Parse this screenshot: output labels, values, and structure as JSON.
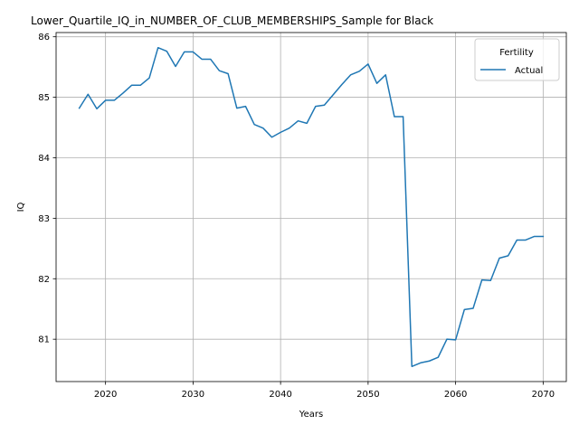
{
  "chart_data": {
    "type": "line",
    "title": "Lower_Quartile_IQ_in_NUMBER_OF_CLUB_MEMBERSHIPS_Sample for Black",
    "xlabel": "Years",
    "ylabel": "IQ",
    "xlim": [
      2014.35,
      2072.65
    ],
    "ylim": [
      80.3,
      86.07
    ],
    "x_ticks": [
      2020,
      2030,
      2040,
      2050,
      2060,
      2070
    ],
    "y_ticks": [
      81,
      82,
      83,
      84,
      85,
      86
    ],
    "grid": true,
    "legend": {
      "title": "Fertility",
      "placement": "top-right"
    },
    "series": [
      {
        "name": "Actual",
        "color": "#1f77b4",
        "x": [
          2017,
          2018,
          2019,
          2020,
          2021,
          2022,
          2023,
          2024,
          2025,
          2026,
          2027,
          2028,
          2029,
          2030,
          2031,
          2032,
          2033,
          2034,
          2035,
          2036,
          2037,
          2038,
          2039,
          2040,
          2041,
          2042,
          2043,
          2044,
          2045,
          2046,
          2047,
          2048,
          2049,
          2050,
          2051,
          2052,
          2053,
          2054,
          2055,
          2056,
          2057,
          2058,
          2059,
          2060,
          2061,
          2062,
          2063,
          2064,
          2065,
          2066,
          2067,
          2068,
          2069,
          2070
        ],
        "values": [
          84.82,
          85.05,
          84.81,
          84.95,
          84.95,
          85.07,
          85.2,
          85.2,
          85.32,
          85.82,
          85.76,
          85.51,
          85.75,
          85.75,
          85.63,
          85.63,
          85.44,
          85.39,
          84.82,
          84.85,
          84.55,
          84.49,
          84.34,
          84.42,
          84.49,
          84.61,
          84.57,
          84.85,
          84.87,
          85.04,
          85.21,
          85.37,
          85.43,
          85.55,
          85.23,
          85.37,
          84.68,
          84.68,
          80.55,
          80.61,
          80.64,
          80.7,
          81.0,
          80.99,
          81.49,
          81.51,
          81.98,
          81.97,
          82.34,
          82.38,
          82.64,
          82.64,
          82.7,
          82.7
        ]
      }
    ]
  }
}
